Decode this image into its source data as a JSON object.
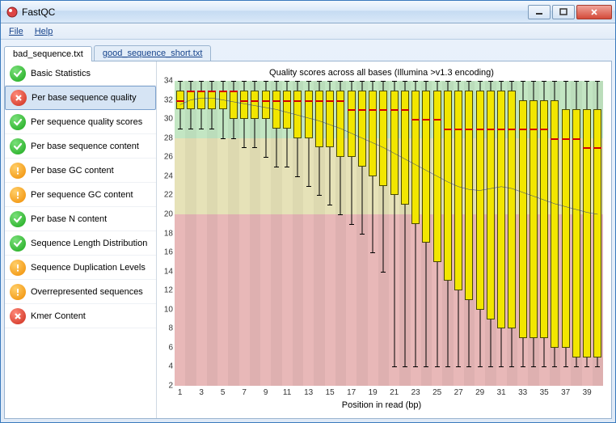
{
  "window": {
    "title": "FastQC"
  },
  "menu": {
    "file": "File",
    "help": "Help"
  },
  "tabs": [
    {
      "label": "bad_sequence.txt",
      "active": true
    },
    {
      "label": "good_sequence_short.txt",
      "active": false
    }
  ],
  "sidebar": [
    {
      "label": "Basic Statistics",
      "status": "pass"
    },
    {
      "label": "Per base sequence quality",
      "status": "fail",
      "selected": true
    },
    {
      "label": "Per sequence quality scores",
      "status": "pass"
    },
    {
      "label": "Per base sequence content",
      "status": "pass"
    },
    {
      "label": "Per base GC content",
      "status": "warn"
    },
    {
      "label": "Per sequence GC content",
      "status": "warn"
    },
    {
      "label": "Per base N content",
      "status": "pass"
    },
    {
      "label": "Sequence Length Distribution",
      "status": "pass"
    },
    {
      "label": "Sequence Duplication Levels",
      "status": "warn"
    },
    {
      "label": "Overrepresented sequences",
      "status": "warn"
    },
    {
      "label": "Kmer Content",
      "status": "fail"
    }
  ],
  "chart": {
    "title": "Quality scores across all bases (Illumina >v1.3 encoding)",
    "xaxis_title": "Position in read (bp)",
    "ylim": [
      2,
      34
    ],
    "ytick_step": 2,
    "zones": [
      {
        "from": 28,
        "to": 34,
        "color": "#c3e6c3"
      },
      {
        "from": 20,
        "to": 28,
        "color": "#e6e2b8"
      },
      {
        "from": 2,
        "to": 20,
        "color": "#e8b8b8"
      }
    ],
    "x_positions": [
      1,
      2,
      3,
      4,
      5,
      6,
      7,
      8,
      9,
      10,
      11,
      12,
      13,
      14,
      15,
      16,
      17,
      18,
      19,
      20,
      21,
      22,
      23,
      24,
      25,
      26,
      27,
      28,
      29,
      30,
      31,
      32,
      33,
      34,
      35,
      36,
      37,
      38,
      39,
      40
    ],
    "x_tick_every": 2,
    "box_color": "#f2e600",
    "median_color": "#d00000",
    "mean_line_color": "#2a3a8a",
    "boxes": [
      {
        "low": 29,
        "q1": 31,
        "med": 32,
        "q3": 33,
        "high": 34,
        "mean": 31.5
      },
      {
        "low": 29,
        "q1": 31,
        "med": 33,
        "q3": 33,
        "high": 34,
        "mean": 32.0
      },
      {
        "low": 29,
        "q1": 31,
        "med": 33,
        "q3": 33,
        "high": 34,
        "mean": 32.2
      },
      {
        "low": 29,
        "q1": 31,
        "med": 33,
        "q3": 33,
        "high": 34,
        "mean": 32.2
      },
      {
        "low": 28,
        "q1": 31,
        "med": 33,
        "q3": 33,
        "high": 34,
        "mean": 32.0
      },
      {
        "low": 28,
        "q1": 30,
        "med": 33,
        "q3": 33,
        "high": 34,
        "mean": 31.8
      },
      {
        "low": 27,
        "q1": 30,
        "med": 32,
        "q3": 33,
        "high": 34,
        "mean": 31.6
      },
      {
        "low": 27,
        "q1": 30,
        "med": 32,
        "q3": 33,
        "high": 34,
        "mean": 31.4
      },
      {
        "low": 26,
        "q1": 30,
        "med": 32,
        "q3": 33,
        "high": 34,
        "mean": 31.2
      },
      {
        "low": 25,
        "q1": 29,
        "med": 32,
        "q3": 33,
        "high": 34,
        "mean": 31.0
      },
      {
        "low": 25,
        "q1": 29,
        "med": 32,
        "q3": 33,
        "high": 34,
        "mean": 30.7
      },
      {
        "low": 24,
        "q1": 28,
        "med": 32,
        "q3": 33,
        "high": 34,
        "mean": 30.4
      },
      {
        "low": 23,
        "q1": 28,
        "med": 32,
        "q3": 33,
        "high": 34,
        "mean": 30.1
      },
      {
        "low": 22,
        "q1": 27,
        "med": 32,
        "q3": 33,
        "high": 34,
        "mean": 29.8
      },
      {
        "low": 21,
        "q1": 27,
        "med": 32,
        "q3": 33,
        "high": 34,
        "mean": 29.4
      },
      {
        "low": 20,
        "q1": 26,
        "med": 32,
        "q3": 33,
        "high": 34,
        "mean": 29.0
      },
      {
        "low": 19,
        "q1": 26,
        "med": 31,
        "q3": 33,
        "high": 34,
        "mean": 28.5
      },
      {
        "low": 18,
        "q1": 25,
        "med": 31,
        "q3": 33,
        "high": 34,
        "mean": 28.0
      },
      {
        "low": 16,
        "q1": 24,
        "med": 31,
        "q3": 33,
        "high": 34,
        "mean": 27.5
      },
      {
        "low": 14,
        "q1": 23,
        "med": 31,
        "q3": 33,
        "high": 34,
        "mean": 27.0
      },
      {
        "low": 4,
        "q1": 22,
        "med": 31,
        "q3": 33,
        "high": 34,
        "mean": 26.4
      },
      {
        "low": 4,
        "q1": 21,
        "med": 31,
        "q3": 33,
        "high": 34,
        "mean": 25.8
      },
      {
        "low": 4,
        "q1": 19,
        "med": 30,
        "q3": 33,
        "high": 34,
        "mean": 25.2
      },
      {
        "low": 4,
        "q1": 17,
        "med": 30,
        "q3": 33,
        "high": 34,
        "mean": 24.6
      },
      {
        "low": 4,
        "q1": 15,
        "med": 30,
        "q3": 33,
        "high": 34,
        "mean": 24.0
      },
      {
        "low": 4,
        "q1": 13,
        "med": 29,
        "q3": 33,
        "high": 34,
        "mean": 23.4
      },
      {
        "low": 4,
        "q1": 12,
        "med": 29,
        "q3": 33,
        "high": 34,
        "mean": 22.9
      },
      {
        "low": 4,
        "q1": 11,
        "med": 29,
        "q3": 33,
        "high": 34,
        "mean": 22.6
      },
      {
        "low": 4,
        "q1": 10,
        "med": 29,
        "q3": 33,
        "high": 34,
        "mean": 22.5
      },
      {
        "low": 4,
        "q1": 9,
        "med": 29,
        "q3": 33,
        "high": 34,
        "mean": 22.7
      },
      {
        "low": 4,
        "q1": 8,
        "med": 29,
        "q3": 33,
        "high": 34,
        "mean": 22.9
      },
      {
        "low": 4,
        "q1": 8,
        "med": 29,
        "q3": 33,
        "high": 34,
        "mean": 22.7
      },
      {
        "low": 4,
        "q1": 7,
        "med": 29,
        "q3": 32,
        "high": 34,
        "mean": 22.3
      },
      {
        "low": 4,
        "q1": 7,
        "med": 29,
        "q3": 32,
        "high": 34,
        "mean": 21.9
      },
      {
        "low": 4,
        "q1": 7,
        "med": 29,
        "q3": 32,
        "high": 34,
        "mean": 21.5
      },
      {
        "low": 4,
        "q1": 6,
        "med": 28,
        "q3": 32,
        "high": 34,
        "mean": 21.1
      },
      {
        "low": 4,
        "q1": 6,
        "med": 28,
        "q3": 31,
        "high": 34,
        "mean": 20.8
      },
      {
        "low": 4,
        "q1": 5,
        "med": 28,
        "q3": 31,
        "high": 34,
        "mean": 20.5
      },
      {
        "low": 4,
        "q1": 5,
        "med": 27,
        "q3": 31,
        "high": 34,
        "mean": 20.2
      },
      {
        "low": 4,
        "q1": 5,
        "med": 27,
        "q3": 31,
        "high": 34,
        "mean": 20.0
      }
    ]
  }
}
